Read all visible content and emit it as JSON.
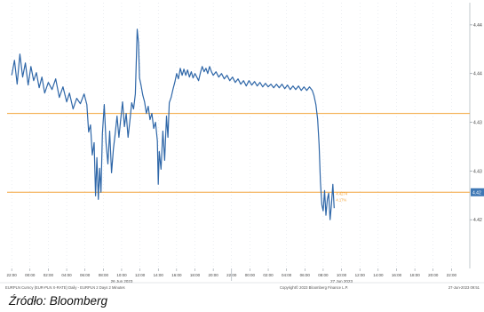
{
  "chart_data": {
    "type": "line",
    "title": "",
    "xlabel": "",
    "ylabel": "",
    "ylim": [
      4.415,
      4.445
    ],
    "y_ticks": [
      "4.44",
      "4.44",
      "4.43",
      "4.43",
      "4.42"
    ],
    "y_tick_values": [
      4.4425,
      4.437,
      4.4315,
      4.426,
      4.4205
    ],
    "x_ticks": [
      "22:00",
      "00:00",
      "02:00",
      "04:00",
      "06:00",
      "08:00",
      "10:00",
      "12:00",
      "14:00",
      "16:00",
      "18:00",
      "20:00",
      "22:00",
      "00:00",
      "02:00",
      "04:00",
      "06:00",
      "08:00",
      "10:00",
      "12:00",
      "14:00",
      "16:00",
      "18:00",
      "20:00",
      "22:00"
    ],
    "x_tick_hours": [
      0,
      2,
      4,
      6,
      8,
      10,
      12,
      14,
      16,
      18,
      20,
      22,
      24,
      26,
      28,
      30,
      32,
      34,
      36,
      38,
      40,
      42,
      44,
      46,
      48
    ],
    "date_labels": [
      {
        "text": "26 Jun 2023",
        "hour": 12
      },
      {
        "text": "27 Jun 2023",
        "hour": 36
      }
    ],
    "reference_lines": [
      {
        "value": 4.4325,
        "color": "#f2a43a"
      },
      {
        "value": 4.4236,
        "color": "#f2a43a"
      }
    ],
    "last_price_badge": "4.42",
    "annotation_lines": [
      "4.4274",
      "4.17%"
    ],
    "series": [
      {
        "color": "#2f67a8",
        "points": [
          [
            0,
            4.4368
          ],
          [
            0.3,
            4.4385
          ],
          [
            0.6,
            4.4358
          ],
          [
            0.9,
            4.4392
          ],
          [
            1.2,
            4.4366
          ],
          [
            1.5,
            4.4382
          ],
          [
            1.8,
            4.4357
          ],
          [
            2.1,
            4.4378
          ],
          [
            2.4,
            4.4362
          ],
          [
            2.7,
            4.4371
          ],
          [
            3.0,
            4.4354
          ],
          [
            3.3,
            4.4366
          ],
          [
            3.6,
            4.4348
          ],
          [
            4.0,
            4.436
          ],
          [
            4.4,
            4.4352
          ],
          [
            4.8,
            4.4364
          ],
          [
            5.2,
            4.4343
          ],
          [
            5.6,
            4.4355
          ],
          [
            6.0,
            4.4338
          ],
          [
            6.3,
            4.4348
          ],
          [
            6.7,
            4.433
          ],
          [
            7.1,
            4.4342
          ],
          [
            7.5,
            4.4336
          ],
          [
            7.9,
            4.4347
          ],
          [
            8.2,
            4.4335
          ],
          [
            8.4,
            4.4304
          ],
          [
            8.6,
            4.4312
          ],
          [
            8.8,
            4.4278
          ],
          [
            9.0,
            4.4292
          ],
          [
            9.15,
            4.4232
          ],
          [
            9.3,
            4.4275
          ],
          [
            9.45,
            4.4228
          ],
          [
            9.6,
            4.4263
          ],
          [
            9.75,
            4.4236
          ],
          [
            9.9,
            4.4302
          ],
          [
            10.1,
            4.4335
          ],
          [
            10.3,
            4.4292
          ],
          [
            10.5,
            4.4268
          ],
          [
            10.7,
            4.4305
          ],
          [
            10.9,
            4.4258
          ],
          [
            11.1,
            4.4285
          ],
          [
            11.3,
            4.4302
          ],
          [
            11.5,
            4.4322
          ],
          [
            11.7,
            4.4298
          ],
          [
            11.9,
            4.4318
          ],
          [
            12.1,
            4.4338
          ],
          [
            12.3,
            4.431
          ],
          [
            12.5,
            4.4325
          ],
          [
            12.7,
            4.4298
          ],
          [
            12.9,
            4.4316
          ],
          [
            13.1,
            4.4337
          ],
          [
            13.3,
            4.433
          ],
          [
            13.5,
            4.4347
          ],
          [
            13.7,
            4.442
          ],
          [
            13.85,
            4.4404
          ],
          [
            13.95,
            4.4365
          ],
          [
            14.1,
            4.4358
          ],
          [
            14.3,
            4.4346
          ],
          [
            14.5,
            4.4338
          ],
          [
            14.7,
            4.4325
          ],
          [
            14.9,
            4.4333
          ],
          [
            15.1,
            4.4318
          ],
          [
            15.3,
            4.4325
          ],
          [
            15.5,
            4.4308
          ],
          [
            15.7,
            4.4315
          ],
          [
            15.9,
            4.4294
          ],
          [
            16.0,
            4.4245
          ],
          [
            16.1,
            4.4282
          ],
          [
            16.3,
            4.4262
          ],
          [
            16.5,
            4.4305
          ],
          [
            16.7,
            4.4272
          ],
          [
            16.9,
            4.4322
          ],
          [
            17.05,
            4.4298
          ],
          [
            17.2,
            4.4337
          ],
          [
            17.4,
            4.4343
          ],
          [
            17.6,
            4.4352
          ],
          [
            17.8,
            4.436
          ],
          [
            18.0,
            4.437
          ],
          [
            18.2,
            4.4364
          ],
          [
            18.4,
            4.4376
          ],
          [
            18.6,
            4.4368
          ],
          [
            18.8,
            4.4375
          ],
          [
            19.0,
            4.4368
          ],
          [
            19.2,
            4.4374
          ],
          [
            19.4,
            4.4366
          ],
          [
            19.6,
            4.4372
          ],
          [
            19.8,
            4.4365
          ],
          [
            20.0,
            4.437
          ],
          [
            20.2,
            4.4366
          ],
          [
            20.4,
            4.4362
          ],
          [
            20.6,
            4.4371
          ],
          [
            20.8,
            4.4378
          ],
          [
            21.0,
            4.4372
          ],
          [
            21.2,
            4.4376
          ],
          [
            21.4,
            4.437
          ],
          [
            21.6,
            4.4378
          ],
          [
            21.8,
            4.4372
          ],
          [
            22.0,
            4.4368
          ],
          [
            22.3,
            4.4372
          ],
          [
            22.6,
            4.4366
          ],
          [
            22.9,
            4.437
          ],
          [
            23.2,
            4.4364
          ],
          [
            23.5,
            4.4368
          ],
          [
            23.8,
            4.4362
          ],
          [
            24.1,
            4.4366
          ],
          [
            24.4,
            4.436
          ],
          [
            24.7,
            4.4364
          ],
          [
            25.0,
            4.4358
          ],
          [
            25.3,
            4.4362
          ],
          [
            25.6,
            4.4356
          ],
          [
            25.9,
            4.4362
          ],
          [
            26.2,
            4.4357
          ],
          [
            26.5,
            4.4361
          ],
          [
            26.8,
            4.4356
          ],
          [
            27.1,
            4.436
          ],
          [
            27.4,
            4.4355
          ],
          [
            27.7,
            4.4359
          ],
          [
            28.0,
            4.4355
          ],
          [
            28.3,
            4.4358
          ],
          [
            28.6,
            4.4354
          ],
          [
            28.9,
            4.4358
          ],
          [
            29.2,
            4.4354
          ],
          [
            29.5,
            4.4358
          ],
          [
            29.8,
            4.4353
          ],
          [
            30.1,
            4.4357
          ],
          [
            30.4,
            4.4352
          ],
          [
            30.7,
            4.4356
          ],
          [
            31.0,
            4.4352
          ],
          [
            31.3,
            4.4356
          ],
          [
            31.6,
            4.4351
          ],
          [
            31.9,
            4.4355
          ],
          [
            32.2,
            4.4351
          ],
          [
            32.5,
            4.4355
          ],
          [
            32.8,
            4.4351
          ],
          [
            33.0,
            4.4345
          ],
          [
            33.2,
            4.4335
          ],
          [
            33.4,
            4.4318
          ],
          [
            33.55,
            4.429
          ],
          [
            33.7,
            4.4248
          ],
          [
            33.85,
            4.4222
          ],
          [
            34.0,
            4.4215
          ],
          [
            34.15,
            4.4238
          ],
          [
            34.3,
            4.421
          ],
          [
            34.45,
            4.4228
          ],
          [
            34.6,
            4.4235
          ],
          [
            34.75,
            4.4205
          ],
          [
            34.9,
            4.4222
          ],
          [
            35.05,
            4.4245
          ],
          [
            35.2,
            4.4218
          ]
        ]
      }
    ]
  },
  "footer": {
    "left_text": "EURPLN Curncy (EUR-PLN X-RATE) Daily - EURPLN 2 Days 2 Minutes",
    "center_text": "Copyright© 2023 Bloomberg Finance L.P.",
    "right_text": "27-Jun-2023 09:51"
  },
  "caption": "Źródło: Bloomberg",
  "colors": {
    "line": "#2f67a8",
    "reference": "#f2a43a",
    "badge": "#3f78b5",
    "grid": "#d7dde4"
  }
}
